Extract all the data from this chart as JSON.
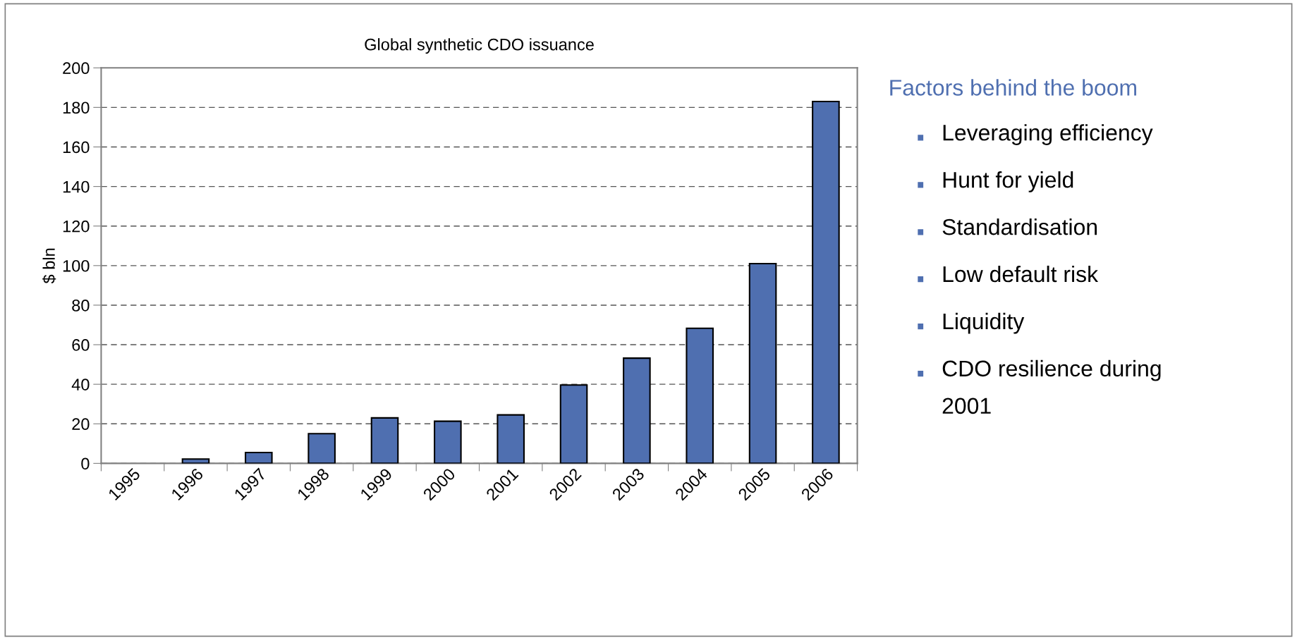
{
  "chart_data": {
    "type": "bar",
    "title": "Global synthetic CDO issuance",
    "ylabel": "$ bln",
    "categories": [
      "1995",
      "1996",
      "1997",
      "1998",
      "1999",
      "2000",
      "2001",
      "2002",
      "2003",
      "2004",
      "2005",
      "2006"
    ],
    "values": [
      null,
      2.2,
      5.5,
      15,
      23,
      21.3,
      24.5,
      39.6,
      53.2,
      68.3,
      101,
      183
    ],
    "color": "#4f6fb0",
    "ylim": [
      0,
      200
    ],
    "yticks": [
      0,
      20,
      40,
      60,
      80,
      100,
      120,
      140,
      160,
      180,
      200
    ],
    "grid": "y",
    "annotations": [
      "Factors behind the boom",
      "Leveraging efficiency",
      "Hunt for yield",
      "Standardisation",
      "Low default risk",
      "Liquidity",
      "CDO resilience during\n2001"
    ]
  }
}
